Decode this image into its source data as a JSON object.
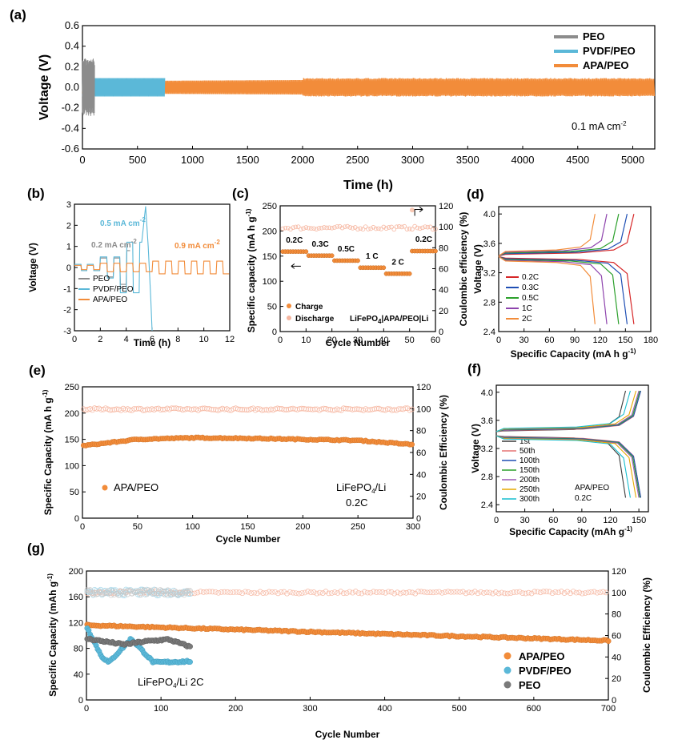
{
  "colors": {
    "peo": "#8c8c8c",
    "pvdf": "#5bb8d8",
    "apa": "#f28c3a",
    "c02": "#d62728",
    "c03": "#1f4fb4",
    "c05": "#2ca02c",
    "c1": "#8e44ad",
    "c2": "#f28c3a",
    "f1": "#3a3a3a",
    "f50": "#e57373",
    "f100": "#1f4fb4",
    "f150": "#2ca02c",
    "f200": "#9b59b6",
    "f250": "#e6a800",
    "f300": "#17becf"
  },
  "chart_data": [
    {
      "panel": "(a)",
      "type": "line",
      "xlabel": "Time (h)",
      "ylabel": "Voltage (V)",
      "xlim": [
        0,
        5200
      ],
      "ylim": [
        -0.6,
        0.6
      ],
      "xticks": [
        "0",
        "500",
        "1000",
        "1500",
        "2000",
        "2500",
        "3000",
        "3500",
        "4000",
        "4500",
        "5000"
      ],
      "yticks": [
        "0.6",
        "0.4",
        "0.2",
        "0.0",
        "-0.2",
        "-0.4",
        "-0.6"
      ],
      "legend": [
        "PEO",
        "PVDF/PEO",
        "APA/PEO"
      ],
      "annotation": "0.1 mA cm",
      "series": [
        {
          "name": "PEO",
          "t_end": 110,
          "amp": 0.28
        },
        {
          "name": "PVDF/PEO",
          "t_end": 750,
          "amp": 0.1
        },
        {
          "name": "APA/PEO",
          "t_end": 5200,
          "amp": [
            0.06,
            0.09
          ]
        }
      ]
    },
    {
      "panel": "(b)",
      "type": "line",
      "xlabel": "Time (h)",
      "ylabel": "Voltage (V)",
      "xlim": [
        0,
        12
      ],
      "ylim": [
        -3,
        3
      ],
      "xticks": [
        "0",
        "2",
        "4",
        "6",
        "8",
        "10",
        "12"
      ],
      "yticks": [
        "3",
        "2",
        "1",
        "0",
        "-1",
        "-2",
        "-3"
      ],
      "legend": [
        "PEO",
        "PVDF/PEO",
        "APA/PEO"
      ],
      "annotations": [
        {
          "text": "0.5 mA cm",
          "color": "pvdf"
        },
        {
          "text": "0.2 mA cm",
          "color": "peo"
        },
        {
          "text": "0.9 mA cm",
          "color": "apa"
        }
      ]
    },
    {
      "panel": "(c)",
      "type": "scatter",
      "xlabel": "Cycle Number",
      "ylabel": "Specific capacity (mA h g",
      "y2label": "Coulombic efficiency (%)",
      "xlim": [
        0,
        60
      ],
      "ylim": [
        0,
        250
      ],
      "y2lim": [
        0,
        120
      ],
      "xticks": [
        "0",
        "10",
        "20",
        "30",
        "40",
        "50",
        "60"
      ],
      "yticks": [
        "250",
        "200",
        "150",
        "100",
        "50",
        "0"
      ],
      "y2ticks": [
        "120",
        "100",
        "80",
        "60",
        "40",
        "20",
        "0"
      ],
      "rates": [
        {
          "label": "0.2C",
          "from": 1,
          "to": 10,
          "cap": 158
        },
        {
          "label": "0.3C",
          "from": 11,
          "to": 20,
          "cap": 150
        },
        {
          "label": "0.5C",
          "from": 21,
          "to": 30,
          "cap": 140
        },
        {
          "label": "1 C",
          "from": 31,
          "to": 40,
          "cap": 126
        },
        {
          "label": "2 C",
          "from": 41,
          "to": 50,
          "cap": 114
        },
        {
          "label": "0.2C",
          "from": 51,
          "to": 60,
          "cap": 159
        }
      ],
      "ce": 99,
      "legend": [
        "Charge",
        "Discharge"
      ],
      "cell": "LiFePO|APA/PEO|Li"
    },
    {
      "panel": "(d)",
      "type": "line",
      "xlabel": "Specific Capacity (mA h g",
      "ylabel": "Voltage (V)",
      "xlim": [
        0,
        180
      ],
      "ylim": [
        2.4,
        4.1
      ],
      "xticks": [
        "0",
        "30",
        "60",
        "90",
        "120",
        "150",
        "180"
      ],
      "yticks": [
        "4.0",
        "3.6",
        "3.2",
        "2.8",
        "2.4"
      ],
      "series": [
        {
          "name": "0.2C",
          "cap": 160
        },
        {
          "name": "0.3C",
          "cap": 152
        },
        {
          "name": "0.5C",
          "cap": 142
        },
        {
          "name": "1C",
          "cap": 128
        },
        {
          "name": "2C",
          "cap": 114
        }
      ]
    },
    {
      "panel": "(e)",
      "type": "scatter",
      "xlabel": "Cycle Number",
      "ylabel": "Specific Capacity (mA h g",
      "y2label": "Coulombic Efficiency (%)",
      "xlim": [
        0,
        300
      ],
      "ylim": [
        0,
        250
      ],
      "y2lim": [
        0,
        120
      ],
      "xticks": [
        "0",
        "50",
        "100",
        "150",
        "200",
        "250",
        "300"
      ],
      "yticks": [
        "250",
        "200",
        "150",
        "100",
        "50",
        "0"
      ],
      "y2ticks": [
        "120",
        "100",
        "80",
        "60",
        "40",
        "20",
        "0"
      ],
      "capacity_points": [
        [
          1,
          138
        ],
        [
          50,
          150
        ],
        [
          100,
          153
        ],
        [
          150,
          152
        ],
        [
          200,
          150
        ],
        [
          250,
          148
        ],
        [
          300,
          140
        ]
      ],
      "ce": 99.5,
      "legend": [
        "APA/PEO"
      ],
      "cell": "LiFePO/Li",
      "rate": "0.2C"
    },
    {
      "panel": "(f)",
      "type": "line",
      "xlabel": "Specific Capacity (mAh g",
      "ylabel": "Voltage (V)",
      "xlim": [
        0,
        160
      ],
      "ylim": [
        2.3,
        4.1
      ],
      "xticks": [
        "0",
        "30",
        "60",
        "90",
        "120",
        "150"
      ],
      "yticks": [
        "4.0",
        "3.6",
        "3.2",
        "2.8",
        "2.4"
      ],
      "series": [
        {
          "name": "1st",
          "cap": 136
        },
        {
          "name": "50th",
          "cap": 152
        },
        {
          "name": "100th",
          "cap": 152
        },
        {
          "name": "150th",
          "cap": 151
        },
        {
          "name": "200th",
          "cap": 150
        },
        {
          "name": "250th",
          "cap": 147
        },
        {
          "name": "300th",
          "cap": 141
        }
      ],
      "notes": [
        "APA/PEO",
        "0.2C"
      ]
    },
    {
      "panel": "(g)",
      "type": "scatter",
      "xlabel": "Cycle Number",
      "ylabel": "Specific Capacity (mAh g",
      "y2label": "Coulombic Efficiency (%)",
      "xlim": [
        0,
        700
      ],
      "ylim": [
        0,
        200
      ],
      "y2lim": [
        0,
        120
      ],
      "xticks": [
        "0",
        "100",
        "200",
        "300",
        "400",
        "500",
        "600",
        "700"
      ],
      "yticks": [
        "200",
        "160",
        "120",
        "80",
        "40",
        "0"
      ],
      "y2ticks": [
        "120",
        "100",
        "80",
        "60",
        "40",
        "20",
        "0"
      ],
      "series": [
        {
          "name": "APA/PEO",
          "cap_points": [
            [
              1,
              116
            ],
            [
              700,
              92
            ]
          ],
          "ce": 100
        },
        {
          "name": "PVDF/PEO",
          "cap_points": [
            [
              1,
              112
            ],
            [
              20,
              68
            ],
            [
              30,
              58
            ],
            [
              60,
              95
            ],
            [
              90,
              58
            ],
            [
              140,
              60
            ]
          ],
          "ce": 100
        },
        {
          "name": "PEO",
          "cap_points": [
            [
              1,
              95
            ],
            [
              50,
              86
            ],
            [
              80,
              91
            ],
            [
              110,
              94
            ],
            [
              140,
              82
            ]
          ],
          "ce": 100
        }
      ],
      "legend": [
        "APA/PEO",
        "PVDF/PEO",
        "PEO"
      ],
      "cell": "LiFePO/Li",
      "rate": "2C"
    }
  ]
}
